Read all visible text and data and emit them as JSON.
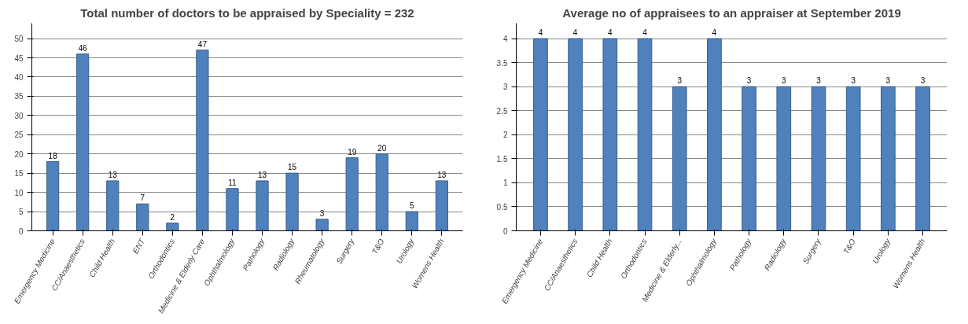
{
  "chart_data": [
    {
      "type": "bar",
      "title": "Total number of doctors to be appraised by Speciality = 232",
      "categories": [
        "Emergency Medicine",
        "CC/Anaesthetics",
        "Child Health",
        "ENT",
        "Orthodontics",
        "Medicine & Elderly Care",
        "Ophthalmology",
        "Pathology",
        "Radiology",
        "Rheumatology",
        "Surgery",
        "T&O",
        "Urology",
        "Womens Health"
      ],
      "values": [
        18,
        46,
        13,
        7,
        2,
        47,
        11,
        13,
        15,
        3,
        19,
        20,
        5,
        13
      ],
      "color": "#4f81bd",
      "ylim": [
        0,
        50
      ],
      "yticks": [
        0,
        5,
        10,
        15,
        20,
        25,
        30,
        35,
        40,
        45,
        50
      ],
      "grid": "y",
      "data_labels": true
    },
    {
      "type": "bar",
      "title": "Average no of appraisees to an appraiser at September 2019",
      "categories": [
        "Emergency Medicine",
        "CC/Anaesthetics",
        "Child Health",
        "Orthodontics",
        "Medicine & Elderly...",
        "Ophthalmology",
        "Pathology",
        "Radiology",
        "Surgery",
        "T&O",
        "Urology",
        "Womens Health"
      ],
      "values": [
        4,
        4,
        4,
        4,
        3,
        4,
        3,
        3,
        3,
        3,
        3,
        3
      ],
      "color": "#4f81bd",
      "ylim": [
        0,
        4
      ],
      "yticks": [
        0,
        0.5,
        1,
        1.5,
        2,
        2.5,
        3,
        3.5,
        4
      ],
      "grid": "y",
      "data_labels": true
    }
  ]
}
